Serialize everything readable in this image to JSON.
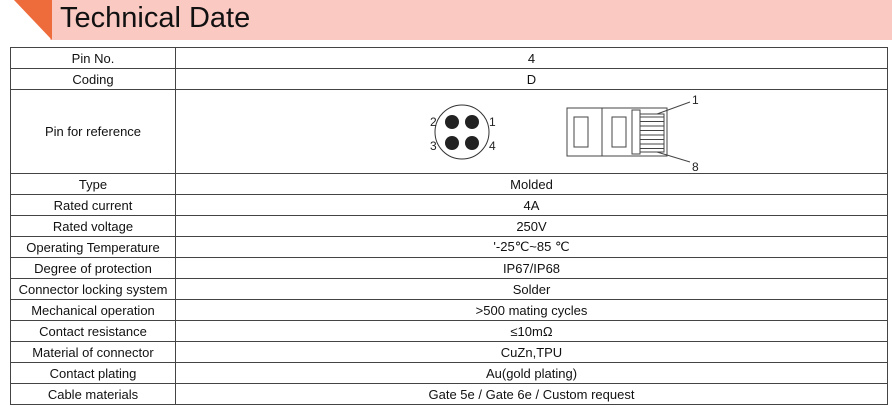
{
  "header": {
    "title": "Technical Date",
    "accent": "#ee6b3c",
    "band": "#f9c9c2"
  },
  "rows": [
    {
      "label": "Pin No.",
      "value": "4"
    },
    {
      "label": "Coding",
      "value": "D"
    },
    {
      "label": "Pin for reference",
      "value": ""
    },
    {
      "label": "Type",
      "value": "Molded"
    },
    {
      "label": "Rated current",
      "value": "4A"
    },
    {
      "label": "Rated voltage",
      "value": "250V"
    },
    {
      "label": "Operating Temperature",
      "value": "'-25℃~85 ℃"
    },
    {
      "label": "Degree of protection",
      "value": "IP67/IP68"
    },
    {
      "label": "Connector locking system",
      "value": "Solder"
    },
    {
      "label": "Mechanical operation",
      "value": ">500 mating cycles"
    },
    {
      "label": "Contact resistance",
      "value": "≤10mΩ"
    },
    {
      "label": "Material of connector",
      "value": "CuZn,TPU"
    },
    {
      "label": "Contact plating",
      "value": "Au(gold plating)"
    },
    {
      "label": "Cable materials",
      "value": "Gate 5e / Gate 6e / Custom request"
    }
  ],
  "diagram": {
    "m12_pins": [
      "1",
      "2",
      "3",
      "4"
    ],
    "rj45_pins": [
      "1",
      "8"
    ]
  }
}
